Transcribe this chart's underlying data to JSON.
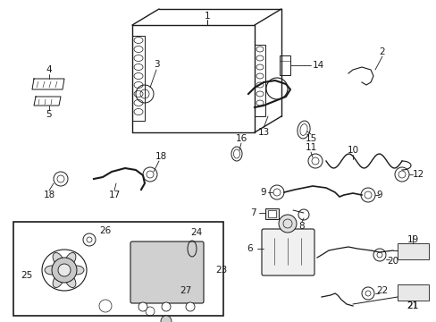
{
  "bg_color": "#ffffff",
  "lc": "#1a1a1a",
  "figsize": [
    4.89,
    3.6
  ],
  "dpi": 100
}
